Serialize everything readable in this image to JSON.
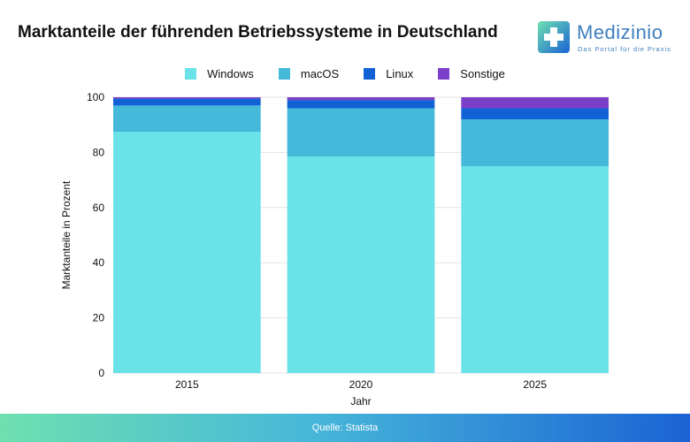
{
  "header": {
    "title": "Marktanteile der führenden Betriebssysteme in Deutschland"
  },
  "logo": {
    "name": "Medizinio",
    "tagline": "Das Portal für die Praxis"
  },
  "footer": {
    "source": "Quelle: Statista"
  },
  "colors": {
    "windows": "#6ae3e8",
    "macos": "#44b9d9",
    "linux": "#1262d6",
    "sonstige": "#7c3fc9"
  },
  "chart_data": {
    "type": "bar",
    "stacked": true,
    "categories": [
      "2015",
      "2020",
      "2025"
    ],
    "series": [
      {
        "name": "Windows",
        "color": "#6ae3e8",
        "values": [
          87.5,
          78.5,
          75
        ]
      },
      {
        "name": "macOS",
        "color": "#44b9d9",
        "values": [
          9.5,
          17.5,
          17
        ]
      },
      {
        "name": "Linux",
        "color": "#1262d6",
        "values": [
          2.5,
          3,
          4
        ]
      },
      {
        "name": "Sonstige",
        "color": "#7c3fc9",
        "values": [
          0.5,
          1,
          4
        ]
      }
    ],
    "xlabel": "Jahr",
    "ylabel": "Marktanteile in Prozent",
    "ylim": [
      0,
      100
    ],
    "yticks": [
      0,
      20,
      40,
      60,
      80,
      100
    ],
    "grid": true,
    "legend": "top-center"
  }
}
